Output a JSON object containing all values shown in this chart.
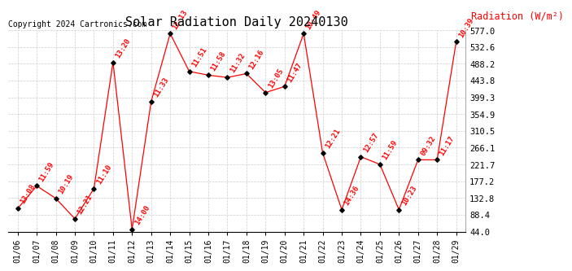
{
  "title": "Solar Radiation Daily 20240130",
  "copyright": "Copyright 2024 Cartronics.com",
  "ylabel": "Radiation (W/m²)",
  "categories": [
    "01/06",
    "01/07",
    "01/08",
    "01/09",
    "01/10",
    "01/11",
    "01/12",
    "01/13",
    "01/14",
    "01/15",
    "01/16",
    "01/17",
    "01/18",
    "01/19",
    "01/20",
    "01/21",
    "01/22",
    "01/23",
    "01/24",
    "01/25",
    "01/26",
    "01/27",
    "01/28",
    "01/29"
  ],
  "values": [
    105,
    165,
    132,
    78,
    158,
    492,
    50,
    388,
    568,
    468,
    458,
    452,
    462,
    412,
    428,
    568,
    252,
    102,
    242,
    222,
    102,
    234,
    234,
    546
  ],
  "labels": [
    "13:08",
    "11:59",
    "10:19",
    "12:21",
    "11:10",
    "13:20",
    "14:00",
    "11:33",
    "12:13",
    "11:51",
    "11:58",
    "11:32",
    "12:16",
    "13:05",
    "11:47",
    "10:49",
    "12:21",
    "14:36",
    "12:57",
    "11:59",
    "10:23",
    "09:32",
    "11:17",
    "10:39"
  ],
  "ylim": [
    44.0,
    577.0
  ],
  "yticks": [
    44.0,
    88.4,
    132.8,
    177.2,
    221.7,
    266.1,
    310.5,
    354.9,
    399.3,
    443.8,
    488.2,
    532.6,
    577.0
  ],
  "line_color": "#ff0000",
  "marker_color": "#000000",
  "background_color": "#ffffff",
  "grid_color": "#cccccc",
  "title_fontsize": 11,
  "label_fontsize": 6.5,
  "copyright_fontsize": 7,
  "ylabel_fontsize": 8.5
}
